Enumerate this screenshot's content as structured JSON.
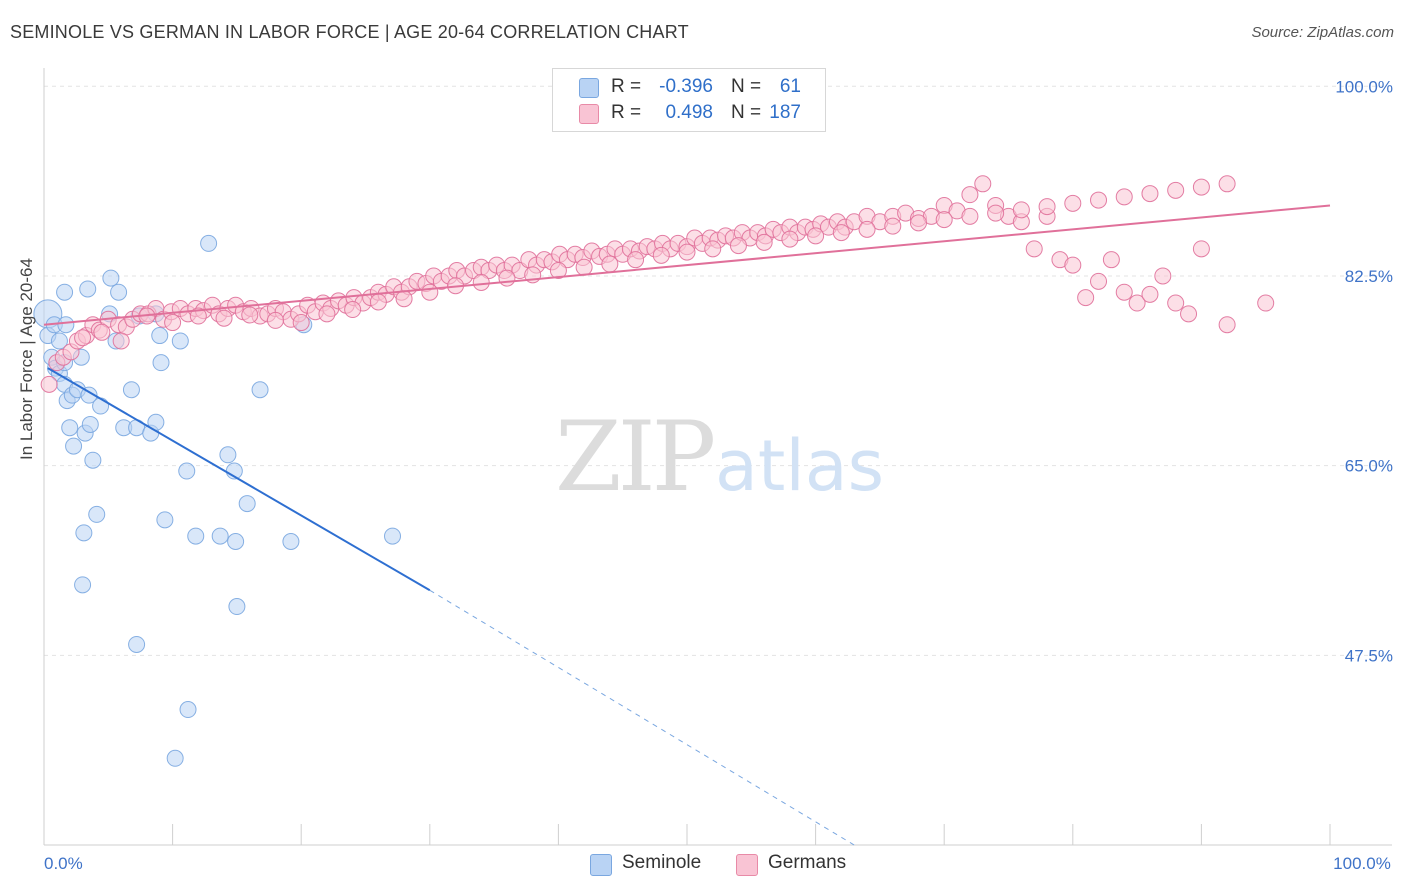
{
  "title": "SEMINOLE VS GERMAN IN LABOR FORCE | AGE 20-64 CORRELATION CHART",
  "source": "Source: ZipAtlas.com",
  "watermark": {
    "zip": "ZIP",
    "atlas": "atlas"
  },
  "legend": {
    "r_label": "R =",
    "n_label": "N =",
    "series": [
      {
        "name": "Seminole",
        "r": "-0.396",
        "n": "61",
        "fill": "#b9d3f4",
        "stroke": "#7aa7e0"
      },
      {
        "name": "Germans",
        "r": "0.498",
        "n": "187",
        "fill": "#f9c4d4",
        "stroke": "#e88aa7"
      }
    ]
  },
  "chart_data": {
    "type": "scatter",
    "title": "SEMINOLE VS GERMAN IN LABOR FORCE | AGE 20-64 CORRELATION CHART",
    "xlabel": "",
    "ylabel": "In Labor Force | Age 20-64",
    "xlim": [
      0,
      100
    ],
    "ylim": [
      30,
      101.5
    ],
    "x_tick_labels": [
      {
        "value": 0,
        "label": "0.0%"
      },
      {
        "value": 100,
        "label": "100.0%"
      }
    ],
    "y_tick_labels": [
      {
        "value": 100,
        "label": "100.0%"
      },
      {
        "value": 82.5,
        "label": "82.5%"
      },
      {
        "value": 65,
        "label": "65.0%"
      },
      {
        "value": 47.5,
        "label": "47.5%"
      }
    ],
    "x_minor_ticks": [
      0,
      10,
      20,
      30,
      40,
      50,
      60,
      70,
      80,
      90,
      100
    ],
    "grid": true,
    "series": [
      {
        "name": "Seminole",
        "color": "#7aa7e0",
        "fill": "#b9d3f4",
        "trend": {
          "x": [
            0.3,
            30
          ],
          "y": [
            74,
            53.5
          ],
          "dashed_to": [
            63,
            30
          ]
        },
        "points": [
          [
            0.3,
            79
          ],
          [
            0.3,
            77
          ],
          [
            0.8,
            78
          ],
          [
            1.2,
            76.5
          ],
          [
            0.6,
            75
          ],
          [
            0.9,
            74
          ],
          [
            1.2,
            73.5
          ],
          [
            1.6,
            74.5
          ],
          [
            1.6,
            72.5
          ],
          [
            1.8,
            71
          ],
          [
            2.2,
            71.5
          ],
          [
            2.6,
            72
          ],
          [
            2.9,
            75
          ],
          [
            3.5,
            71.5
          ],
          [
            4.4,
            70.5
          ],
          [
            1.6,
            81
          ],
          [
            1.7,
            78
          ],
          [
            3.4,
            81.3
          ],
          [
            5.2,
            82.3
          ],
          [
            5.8,
            81
          ],
          [
            5.1,
            79
          ],
          [
            5.6,
            76.5
          ],
          [
            6.8,
            72
          ],
          [
            9.1,
            74.5
          ],
          [
            9.0,
            77
          ],
          [
            10.6,
            76.5
          ],
          [
            12.8,
            85.5
          ],
          [
            14.3,
            66
          ],
          [
            14.8,
            64.5
          ],
          [
            20.2,
            78
          ],
          [
            16.8,
            72
          ],
          [
            2.0,
            68.5
          ],
          [
            2.3,
            66.8
          ],
          [
            3.2,
            68
          ],
          [
            3.6,
            68.8
          ],
          [
            3.8,
            65.5
          ],
          [
            4.1,
            60.5
          ],
          [
            6.2,
            68.5
          ],
          [
            7.2,
            68.5
          ],
          [
            8.3,
            68
          ],
          [
            8.7,
            69
          ],
          [
            11.1,
            64.5
          ],
          [
            9.4,
            60
          ],
          [
            11.8,
            58.5
          ],
          [
            13.7,
            58.5
          ],
          [
            14.9,
            58
          ],
          [
            15.8,
            61.5
          ],
          [
            19.2,
            58
          ],
          [
            27.1,
            58.5
          ],
          [
            3.1,
            58.8
          ],
          [
            3.0,
            54
          ],
          [
            15.0,
            52
          ],
          [
            7.2,
            48.5
          ],
          [
            11.2,
            42.5
          ],
          [
            10.2,
            38
          ],
          [
            8.7,
            79
          ],
          [
            7.4,
            78.8
          ]
        ]
      },
      {
        "name": "Germans",
        "color": "#e0709a",
        "fill": "#f9c4d4",
        "trend": {
          "x": [
            0,
            100
          ],
          "y": [
            78,
            89
          ]
        },
        "points": [
          [
            0.4,
            72.5
          ],
          [
            1.0,
            74.5
          ],
          [
            1.5,
            75
          ],
          [
            2.1,
            75.5
          ],
          [
            2.6,
            76.5
          ],
          [
            3.3,
            77
          ],
          [
            3.8,
            78
          ],
          [
            4.3,
            77.5
          ],
          [
            5.0,
            78.5
          ],
          [
            5.8,
            78
          ],
          [
            6.4,
            77.8
          ],
          [
            6.9,
            78.5
          ],
          [
            7.5,
            79
          ],
          [
            8.1,
            79
          ],
          [
            8.7,
            79.5
          ],
          [
            9.3,
            78.5
          ],
          [
            9.9,
            79.2
          ],
          [
            10.6,
            79.5
          ],
          [
            11.2,
            79
          ],
          [
            11.8,
            79.5
          ],
          [
            12.4,
            79.3
          ],
          [
            13.1,
            79.8
          ],
          [
            13.6,
            79
          ],
          [
            14.3,
            79.5
          ],
          [
            14.9,
            79.8
          ],
          [
            15.5,
            79.2
          ],
          [
            16.1,
            79.5
          ],
          [
            16.8,
            78.8
          ],
          [
            17.4,
            79
          ],
          [
            18.0,
            79.5
          ],
          [
            18.6,
            79.2
          ],
          [
            19.2,
            78.5
          ],
          [
            19.8,
            79
          ],
          [
            20.5,
            79.8
          ],
          [
            21.1,
            79.2
          ],
          [
            21.7,
            80
          ],
          [
            22.3,
            79.5
          ],
          [
            22.9,
            80.2
          ],
          [
            23.5,
            79.8
          ],
          [
            24.1,
            80.5
          ],
          [
            24.8,
            80
          ],
          [
            25.4,
            80.5
          ],
          [
            26.0,
            81
          ],
          [
            26.6,
            80.8
          ],
          [
            27.2,
            81.5
          ],
          [
            27.8,
            81
          ],
          [
            28.4,
            81.5
          ],
          [
            29.0,
            82
          ],
          [
            29.7,
            81.8
          ],
          [
            30.3,
            82.5
          ],
          [
            30.9,
            82
          ],
          [
            31.5,
            82.5
          ],
          [
            32.1,
            83
          ],
          [
            32.7,
            82.5
          ],
          [
            33.4,
            83
          ],
          [
            34.0,
            83.3
          ],
          [
            34.6,
            83
          ],
          [
            35.2,
            83.5
          ],
          [
            35.8,
            83
          ],
          [
            36.4,
            83.5
          ],
          [
            37.0,
            83
          ],
          [
            37.7,
            84
          ],
          [
            38.3,
            83.5
          ],
          [
            38.9,
            84
          ],
          [
            39.5,
            83.8
          ],
          [
            40.1,
            84.5
          ],
          [
            40.7,
            84
          ],
          [
            41.3,
            84.5
          ],
          [
            41.9,
            84.2
          ],
          [
            42.6,
            84.8
          ],
          [
            43.2,
            84.3
          ],
          [
            43.8,
            84.5
          ],
          [
            44.4,
            85
          ],
          [
            45.0,
            84.5
          ],
          [
            45.6,
            85
          ],
          [
            46.3,
            84.8
          ],
          [
            46.9,
            85.2
          ],
          [
            47.5,
            85
          ],
          [
            48.1,
            85.5
          ],
          [
            48.7,
            85
          ],
          [
            49.3,
            85.5
          ],
          [
            50.0,
            85.2
          ],
          [
            50.6,
            86
          ],
          [
            51.2,
            85.5
          ],
          [
            51.8,
            86
          ],
          [
            52.4,
            85.8
          ],
          [
            53.0,
            86.2
          ],
          [
            53.6,
            86
          ],
          [
            54.3,
            86.5
          ],
          [
            54.9,
            86
          ],
          [
            55.5,
            86.5
          ],
          [
            56.1,
            86.2
          ],
          [
            56.7,
            86.8
          ],
          [
            57.3,
            86.5
          ],
          [
            58.0,
            87
          ],
          [
            58.6,
            86.5
          ],
          [
            59.2,
            87
          ],
          [
            59.8,
            86.8
          ],
          [
            60.4,
            87.3
          ],
          [
            61.0,
            87
          ],
          [
            61.7,
            87.5
          ],
          [
            62.3,
            87
          ],
          [
            63.0,
            87.5
          ],
          [
            64.0,
            88
          ],
          [
            65.0,
            87.5
          ],
          [
            66.0,
            88
          ],
          [
            67.0,
            88.3
          ],
          [
            68.0,
            87.8
          ],
          [
            69.0,
            88
          ],
          [
            70.0,
            89
          ],
          [
            71.0,
            88.5
          ],
          [
            72.0,
            90
          ],
          [
            73.0,
            91
          ],
          [
            74.0,
            89
          ],
          [
            75.0,
            88
          ],
          [
            76.0,
            87.5
          ],
          [
            77.0,
            85
          ],
          [
            78.0,
            88
          ],
          [
            79.0,
            84
          ],
          [
            80.0,
            83.5
          ],
          [
            81.0,
            80.5
          ],
          [
            82.0,
            82
          ],
          [
            83.0,
            84
          ],
          [
            84.0,
            81
          ],
          [
            85.0,
            80
          ],
          [
            86.0,
            80.8
          ],
          [
            87.0,
            82.5
          ],
          [
            88.0,
            80
          ],
          [
            89.0,
            79
          ],
          [
            90.0,
            85
          ],
          [
            92.0,
            78
          ],
          [
            95.0,
            80
          ],
          [
            3.0,
            76.8
          ],
          [
            4.5,
            77.3
          ],
          [
            6.0,
            76.5
          ],
          [
            8.0,
            78.8
          ],
          [
            10.0,
            78.2
          ],
          [
            12.0,
            78.8
          ],
          [
            14.0,
            78.6
          ],
          [
            16.0,
            78.9
          ],
          [
            18.0,
            78.4
          ],
          [
            20.0,
            78.2
          ],
          [
            22.0,
            79.0
          ],
          [
            24.0,
            79.4
          ],
          [
            26.0,
            80.1
          ],
          [
            28.0,
            80.4
          ],
          [
            30.0,
            81.0
          ],
          [
            32.0,
            81.6
          ],
          [
            34.0,
            81.9
          ],
          [
            36.0,
            82.3
          ],
          [
            38.0,
            82.6
          ],
          [
            40.0,
            83.0
          ],
          [
            42.0,
            83.3
          ],
          [
            44.0,
            83.6
          ],
          [
            46.0,
            84.0
          ],
          [
            48.0,
            84.4
          ],
          [
            50.0,
            84.7
          ],
          [
            52.0,
            85.0
          ],
          [
            54.0,
            85.3
          ],
          [
            56.0,
            85.6
          ],
          [
            58.0,
            85.9
          ],
          [
            60.0,
            86.2
          ],
          [
            62.0,
            86.5
          ],
          [
            64.0,
            86.8
          ],
          [
            66.0,
            87.1
          ],
          [
            68.0,
            87.4
          ],
          [
            70.0,
            87.7
          ],
          [
            72.0,
            88.0
          ],
          [
            74.0,
            88.3
          ],
          [
            76.0,
            88.6
          ],
          [
            78.0,
            88.9
          ],
          [
            80.0,
            89.2
          ],
          [
            82.0,
            89.5
          ],
          [
            84.0,
            89.8
          ],
          [
            86.0,
            90.1
          ],
          [
            88.0,
            90.4
          ],
          [
            90.0,
            90.7
          ],
          [
            92.0,
            91.0
          ]
        ]
      }
    ]
  }
}
